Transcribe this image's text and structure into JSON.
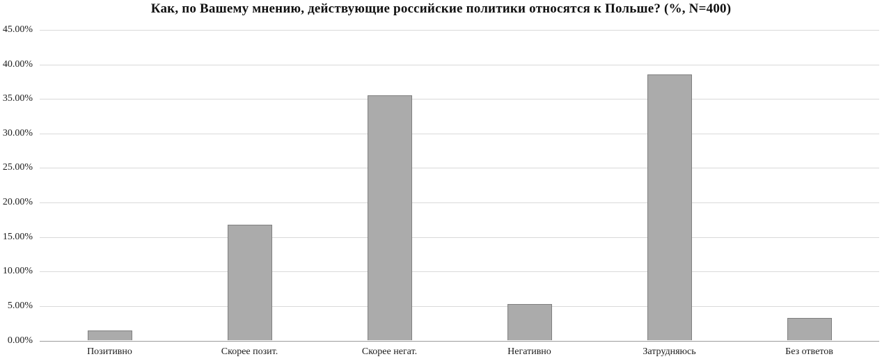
{
  "title": "Как, по Вашему мнению, действующие российские политики относятся к Польше? (%, N=400)",
  "chart_data": {
    "type": "bar",
    "title": "Как, по Вашему мнению, действующие российские политики относятся к Польше? (%, N=400)",
    "categories": [
      "Позитивно",
      "Скорее позит.",
      "Скорее негат.",
      "Негативно",
      "Затрудняюсь",
      "Без ответов"
    ],
    "values": [
      1.5,
      16.75,
      35.5,
      5.25,
      38.5,
      3.25
    ],
    "xlabel": "",
    "ylabel": "",
    "ylim": [
      0,
      45
    ],
    "ytick_step": 5,
    "ytick_labels": [
      "0.00%",
      "5.00%",
      "10.00%",
      "15.00%",
      "20.00%",
      "25.00%",
      "30.00%",
      "35.00%",
      "40.00%",
      "45.00%"
    ],
    "grid": true,
    "legend": false,
    "colors": {
      "background": "#FFFFFF",
      "bar_fill": "#ABABAB",
      "bar_border": "#7F7F7F",
      "gridline": "#D9D9D9",
      "axis_line": "#9B9B9B",
      "text": "#1C1C1C"
    }
  }
}
